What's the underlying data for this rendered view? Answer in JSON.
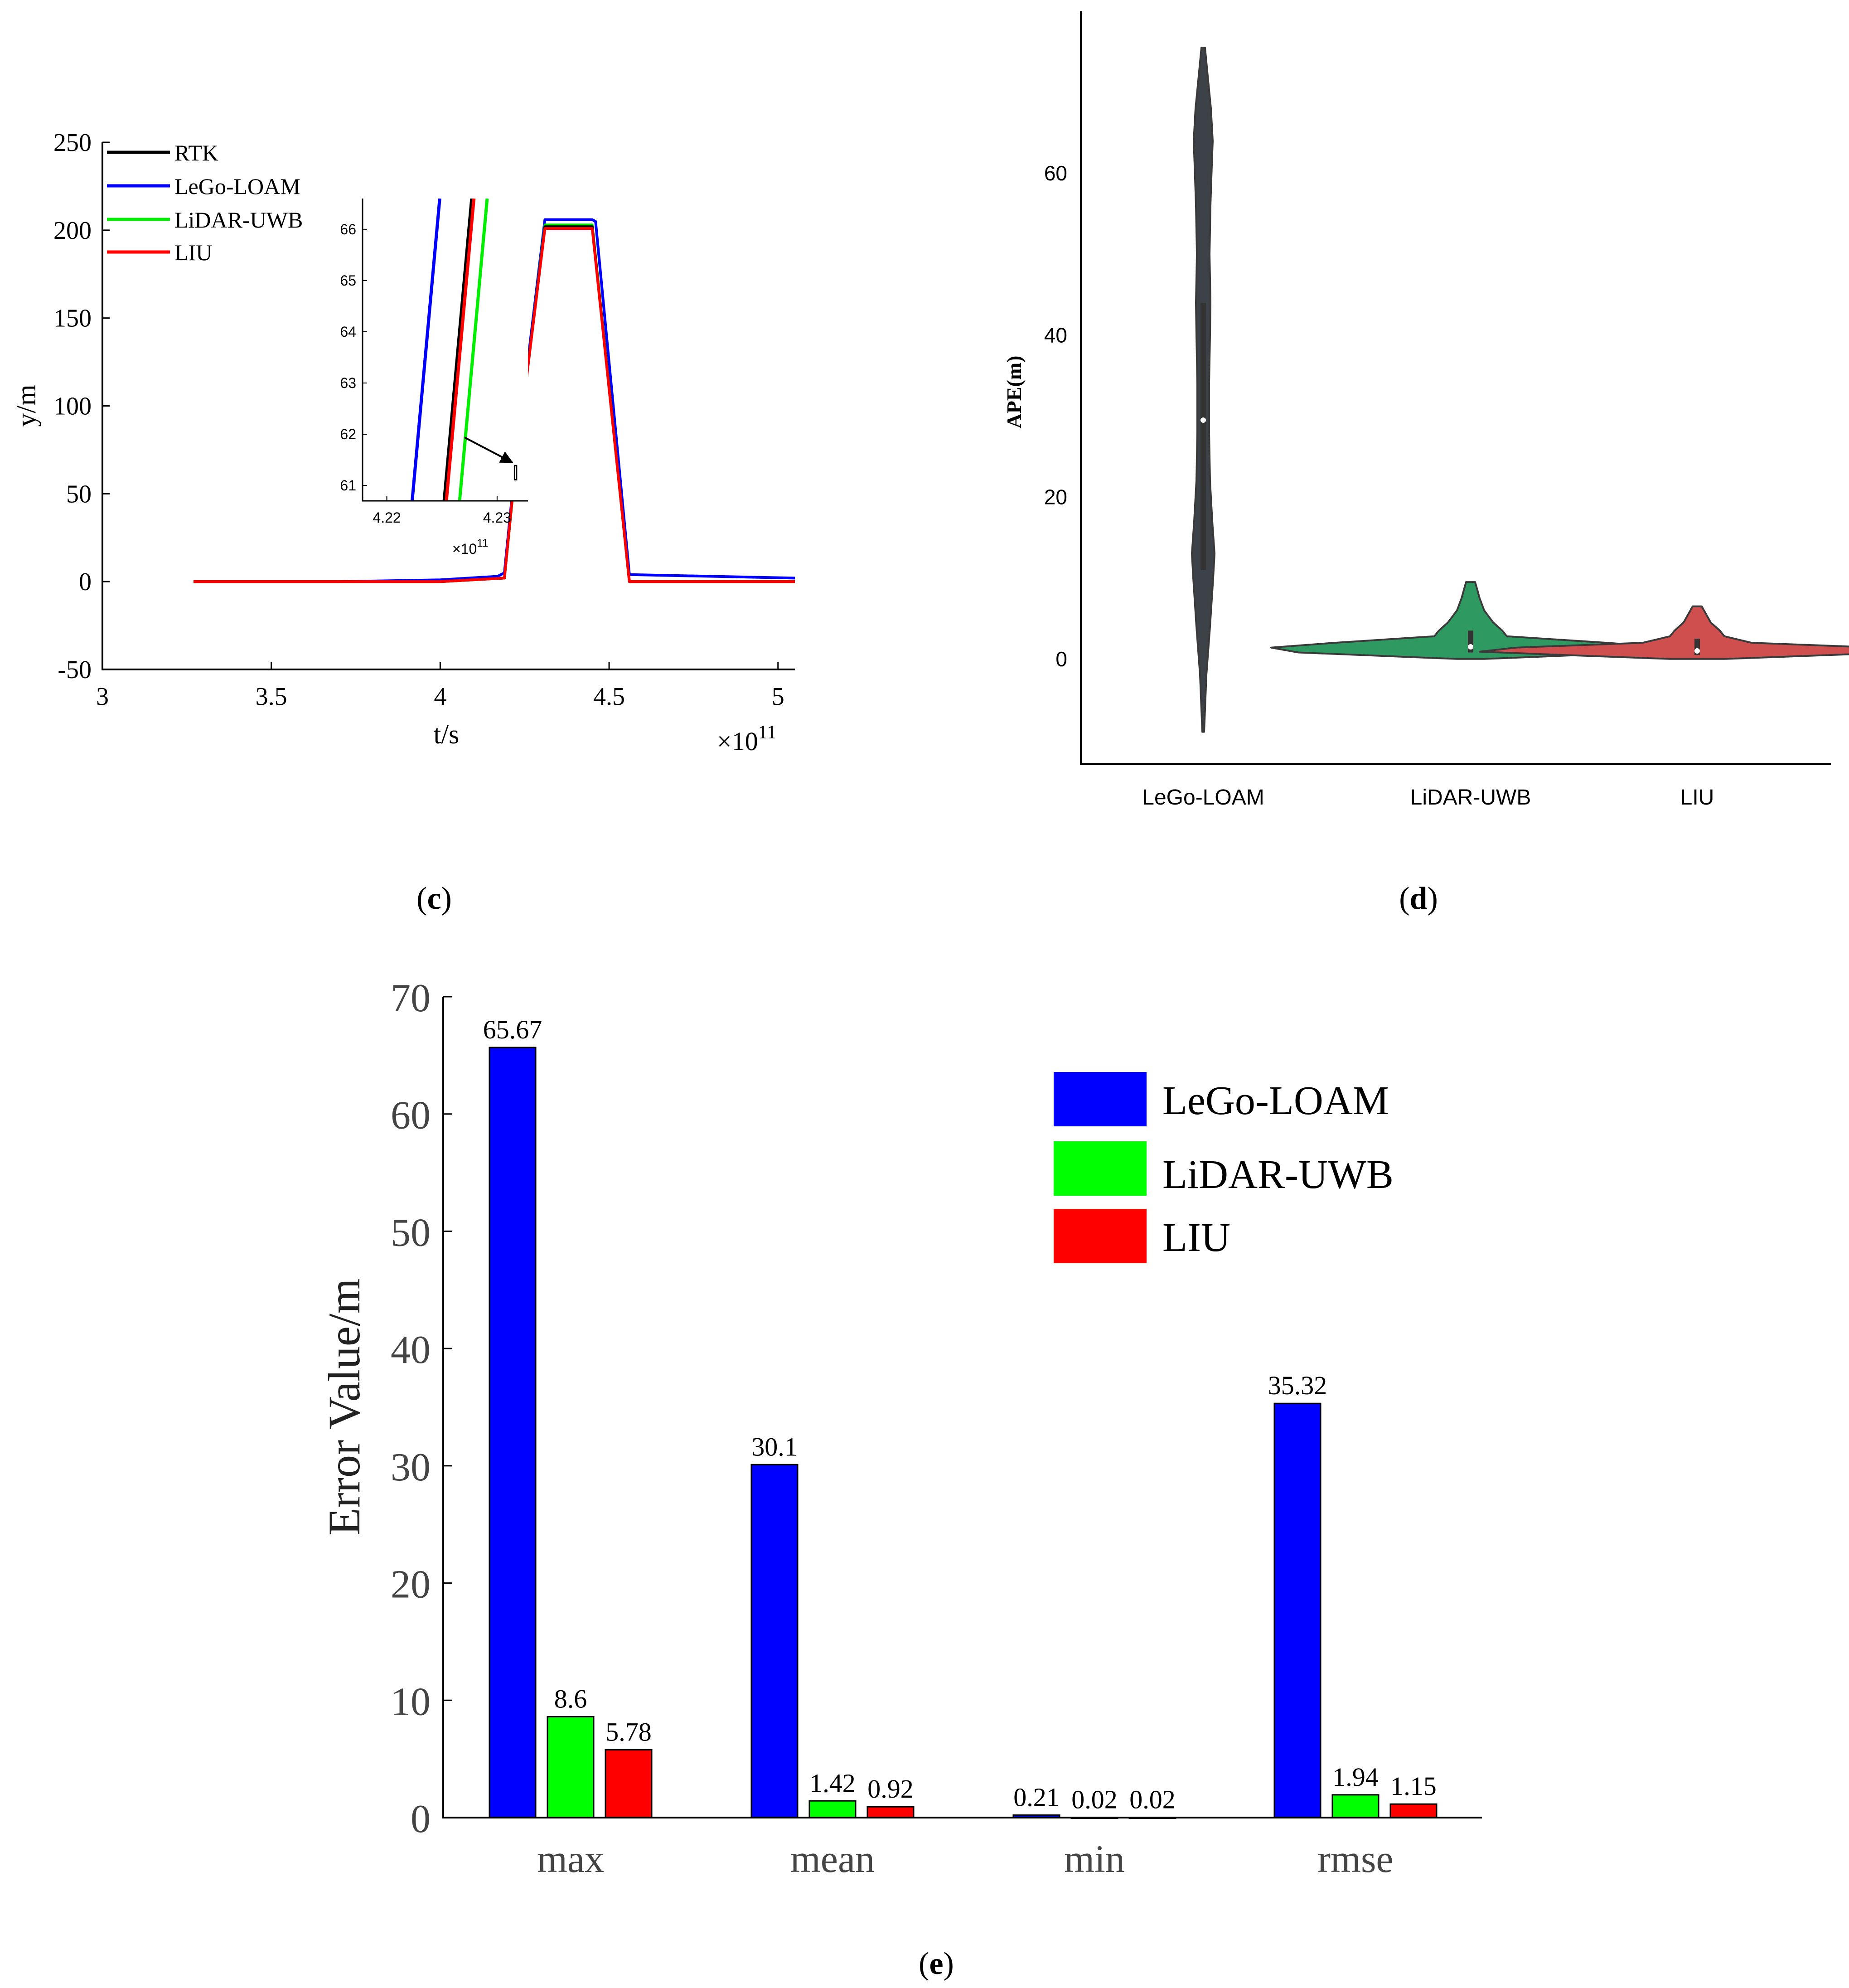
{
  "panels": {
    "c": {
      "label_open": "(",
      "label_letter": "c",
      "label_close": ")"
    },
    "d": {
      "label_open": "(",
      "label_letter": "d",
      "label_close": ")"
    },
    "e": {
      "label_open": "(",
      "label_letter": "e",
      "label_close": ")"
    }
  },
  "colors": {
    "rtk": "#000000",
    "lego": "#0000ff",
    "lidar_uwb": "#00ee00",
    "liu": "#ff0000",
    "violin_lego": "#3d4148",
    "violin_uwb": "#2e9a62",
    "violin_liu": "#cf4f4f",
    "bar_lego": "#0000ff",
    "bar_uwb": "#00ff00",
    "bar_liu": "#ff0000"
  },
  "chart_data": [
    {
      "id": "c",
      "type": "line",
      "title": "",
      "xlabel": "t/s",
      "ylabel": "y/m",
      "x_exponent_label": "×10",
      "x_exponent_power": "11",
      "xlim": [
        3,
        5.05
      ],
      "ylim": [
        -50,
        250
      ],
      "xticks": [
        3,
        3.5,
        4,
        4.5,
        5
      ],
      "xtick_labels": [
        "3",
        "3.5",
        "4",
        "4.5",
        "5"
      ],
      "yticks": [
        -50,
        0,
        50,
        100,
        150,
        200,
        250
      ],
      "ytick_labels": [
        "-50",
        "0",
        "50",
        "100",
        "150",
        "200",
        "250"
      ],
      "legend": [
        "RTK",
        "LeGo-LOAM",
        "LiDAR-UWB",
        "LIU"
      ],
      "legend_position": "top-left",
      "series": [
        {
          "name": "RTK",
          "x": [
            3.27,
            4.0,
            4.19,
            4.22,
            4.31,
            4.45,
            4.56,
            5.05
          ],
          "y": [
            0,
            0,
            2,
            60,
            202,
            202,
            0,
            0
          ]
        },
        {
          "name": "LeGo-LOAM",
          "x": [
            3.27,
            3.7,
            4.0,
            4.17,
            4.19,
            4.22,
            4.31,
            4.45,
            4.46,
            4.56,
            5.05
          ],
          "y": [
            0,
            0,
            1,
            3,
            5,
            62,
            206,
            206,
            205,
            4,
            2
          ]
        },
        {
          "name": "LiDAR-UWB",
          "x": [
            3.27,
            4.0,
            4.19,
            4.22,
            4.31,
            4.45,
            4.56,
            5.05
          ],
          "y": [
            0,
            0,
            2,
            59,
            203,
            203,
            0,
            0
          ]
        },
        {
          "name": "LIU",
          "x": [
            3.27,
            4.0,
            4.19,
            4.22,
            4.31,
            4.45,
            4.56,
            5.05
          ],
          "y": [
            0,
            0,
            2,
            60,
            201,
            201,
            0,
            0
          ]
        }
      ],
      "inset": {
        "xlim": [
          4.2178,
          4.2328
        ],
        "ylim": [
          60.7,
          66.6
        ],
        "xticks": [
          4.22,
          4.23
        ],
        "xtick_labels": [
          "4.22",
          "4.23"
        ],
        "yticks": [
          61,
          62,
          63,
          64,
          65,
          66
        ],
        "ytick_labels": [
          "61",
          "62",
          "63",
          "64",
          "65",
          "66"
        ],
        "x_exponent_label": "×10",
        "x_exponent_power": "11",
        "zoom_box_x": [
          4.22,
          4.226
        ],
        "zoom_box_y": [
          58,
          66
        ],
        "series": [
          {
            "name": "LeGo-LOAM",
            "x": [
              4.2223,
              4.2248
            ],
            "y": [
              60.7,
              66.6
            ]
          },
          {
            "name": "RTK",
            "x": [
              4.2252,
              4.2277
            ],
            "y": [
              60.7,
              66.6
            ]
          },
          {
            "name": "LIU",
            "x": [
              4.2254,
              4.2279
            ],
            "y": [
              60.7,
              66.6
            ]
          },
          {
            "name": "LiDAR-UWB",
            "x": [
              4.2266,
              4.2291
            ],
            "y": [
              60.7,
              66.6
            ]
          }
        ]
      }
    },
    {
      "id": "d",
      "type": "violin",
      "title": "",
      "xlabel": "",
      "ylabel": "APE(m)",
      "ylim": [
        -13,
        80
      ],
      "yticks": [
        0,
        20,
        40,
        60
      ],
      "ytick_labels": [
        "0",
        "20",
        "40",
        "60"
      ],
      "categories": [
        "LeGo-LOAM",
        "LiDAR-UWB",
        "LIU"
      ],
      "violins": [
        {
          "name": "LeGo-LOAM",
          "range": [
            -9,
            75.5
          ],
          "median": 29.5,
          "q1": 11,
          "q3": 44,
          "profile": [
            [
              -9,
              0.2
            ],
            [
              -2,
              0.7
            ],
            [
              4,
              1.5
            ],
            [
              10,
              2.2
            ],
            [
              13,
              2.5
            ],
            [
              17,
              2.0
            ],
            [
              22,
              1.5
            ],
            [
              28,
              1.3
            ],
            [
              34,
              1.3
            ],
            [
              40,
              1.5
            ],
            [
              44,
              1.6
            ],
            [
              50,
              1.4
            ],
            [
              56,
              1.6
            ],
            [
              61,
              1.9
            ],
            [
              64,
              2.1
            ],
            [
              68,
              1.7
            ],
            [
              72,
              1.0
            ],
            [
              75.5,
              0.4
            ]
          ]
        },
        {
          "name": "LiDAR-UWB",
          "range": [
            0,
            9.5
          ],
          "median": 1.5,
          "q1": 0.8,
          "q3": 3.5,
          "profile": [
            [
              0,
              3
            ],
            [
              0.8,
              38
            ],
            [
              1.4,
              44
            ],
            [
              2,
              30
            ],
            [
              2.8,
              8
            ],
            [
              3.5,
              7
            ],
            [
              4.5,
              5
            ],
            [
              6,
              3
            ],
            [
              7.5,
              2
            ],
            [
              9.5,
              1
            ]
          ]
        },
        {
          "name": "LIU",
          "range": [
            0,
            6.5
          ],
          "median": 1.0,
          "q1": 0.5,
          "q3": 2.5,
          "profile": [
            [
              0,
              6
            ],
            [
              0.5,
              30
            ],
            [
              0.9,
              48
            ],
            [
              1.4,
              40
            ],
            [
              2,
              12
            ],
            [
              2.8,
              6
            ],
            [
              3.5,
              5
            ],
            [
              4.5,
              3
            ],
            [
              5.5,
              2
            ],
            [
              6.5,
              1
            ]
          ]
        }
      ]
    },
    {
      "id": "e",
      "type": "bar",
      "title": "",
      "xlabel": "",
      "ylabel": "Error Value/m",
      "ylim": [
        0,
        70
      ],
      "yticks": [
        0,
        10,
        20,
        30,
        40,
        50,
        60,
        70
      ],
      "ytick_labels": [
        "0",
        "10",
        "20",
        "30",
        "40",
        "50",
        "60",
        "70"
      ],
      "categories": [
        "max",
        "mean",
        "min",
        "rmse"
      ],
      "legend_position": "top-right",
      "series": [
        {
          "name": "LeGo-LOAM",
          "values": [
            65.67,
            30.1,
            0.21,
            35.32
          ],
          "labels": [
            "65.67",
            "30.1",
            "0.21",
            "35.32"
          ]
        },
        {
          "name": "LiDAR-UWB",
          "values": [
            8.6,
            1.42,
            0.02,
            1.94
          ],
          "labels": [
            "8.6",
            "1.42",
            "0.02",
            "1.94"
          ]
        },
        {
          "name": "LIU",
          "values": [
            5.78,
            0.92,
            0.02,
            1.15
          ],
          "labels": [
            "5.78",
            "0.92",
            "0.02",
            "1.15"
          ]
        }
      ]
    }
  ]
}
